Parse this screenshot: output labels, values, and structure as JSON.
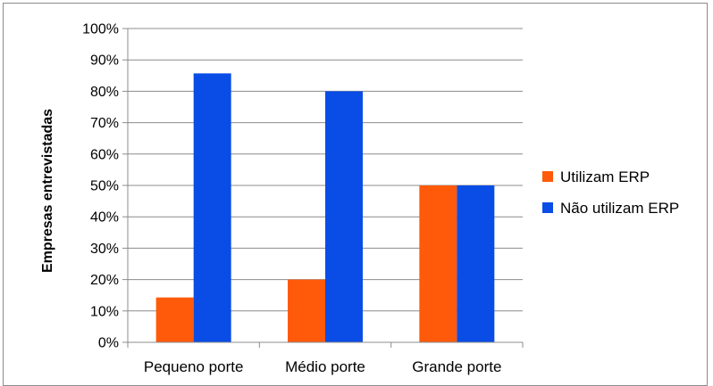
{
  "chart_data": {
    "type": "bar",
    "title": "",
    "xlabel": "",
    "ylabel": "Empresas entrevistadas",
    "categories": [
      "Pequeno porte",
      "Médio porte",
      "Grande porte"
    ],
    "series": [
      {
        "name": "Utilizam ERP",
        "values": [
          14.3,
          20,
          50
        ],
        "color": "#ff5a0a"
      },
      {
        "name": "Não utilizam ERP",
        "values": [
          85.7,
          80,
          50
        ],
        "color": "#0a4de6"
      }
    ],
    "ylim": [
      0,
      100
    ],
    "yticks": [
      0,
      10,
      20,
      30,
      40,
      50,
      60,
      70,
      80,
      90,
      100
    ],
    "ytick_labels": [
      "0%",
      "10%",
      "20%",
      "30%",
      "40%",
      "50%",
      "60%",
      "70%",
      "80%",
      "90%",
      "100%"
    ],
    "grid": true,
    "legend_position": "right"
  }
}
